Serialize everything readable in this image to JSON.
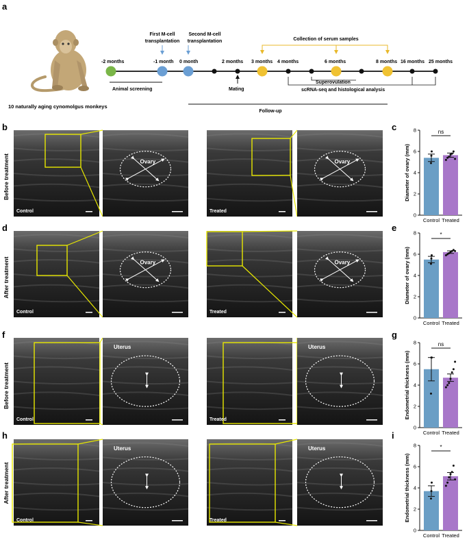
{
  "figure": {
    "panel_labels": [
      "a",
      "b",
      "c",
      "d",
      "e",
      "f",
      "g",
      "h",
      "i"
    ],
    "timeline": {
      "monkey_caption": "10 naturally aging cynomolgus monkeys",
      "points": [
        "-2 months",
        "-1 month",
        "0 month",
        "2 months",
        "3 months",
        "4 months",
        "6 months",
        "8 months",
        "16 months",
        "25 months"
      ],
      "first_transplant": [
        "First M-cell",
        "transplantation"
      ],
      "second_transplant": [
        "Second M-cell",
        "transplantation"
      ],
      "serum": "Collection of serum samples",
      "screening": "Animal screening",
      "mating": "Mating",
      "superovulation": "Superovulation",
      "scrna": "scRNA-seq and histological analysis",
      "followup": "Follow-up",
      "colors": {
        "screening": "#7ab648",
        "transplant": "#6b9fd4",
        "serum": "#f0c232",
        "arrow_serum": "#e8b82a",
        "arrow_transplant": "#6b9fd4",
        "event": "#111111"
      }
    },
    "rows": {
      "before": "Before treatment",
      "after": "After treatment"
    },
    "image_labels": {
      "control": "Control",
      "treated": "Treated",
      "ovary": "Ovary",
      "uterus": "Uterus"
    },
    "colors": {
      "control_bar": "#6a9ec5",
      "treated_bar": "#a877c9",
      "zoom_box": "#e8e800"
    }
  },
  "chart_data": [
    {
      "panel": "c",
      "type": "bar",
      "categories": [
        "Control",
        "Treated"
      ],
      "values": [
        5.4,
        5.65
      ],
      "errors": [
        0.35,
        0.2
      ],
      "points": [
        [
          4.9,
          5.6,
          6.0
        ],
        [
          5.2,
          5.4,
          5.5,
          5.7,
          5.8,
          6.0,
          5.3
        ]
      ],
      "ylabel": "Diameter of ovary (mm)",
      "ylim": [
        0,
        8
      ],
      "yticks": [
        0,
        2,
        4,
        6,
        8
      ],
      "significance": "ns"
    },
    {
      "panel": "e",
      "type": "bar",
      "categories": [
        "Control",
        "Treated"
      ],
      "values": [
        5.5,
        6.2
      ],
      "errors": [
        0.3,
        0.12
      ],
      "points": [
        [
          5.1,
          5.6,
          5.9
        ],
        [
          5.9,
          6.0,
          6.1,
          6.2,
          6.3,
          6.4,
          6.3
        ]
      ],
      "ylabel": "Diameter of ovary (mm)",
      "ylim": [
        0,
        8
      ],
      "yticks": [
        0,
        2,
        4,
        6,
        8
      ],
      "significance": "*"
    },
    {
      "panel": "g",
      "type": "bar",
      "categories": [
        "Control",
        "Treated"
      ],
      "values": [
        5.5,
        4.7
      ],
      "errors": [
        1.1,
        0.35
      ],
      "points": [
        [
          3.2,
          6.6,
          6.6
        ],
        [
          3.8,
          4.0,
          4.2,
          4.6,
          5.2,
          5.5,
          6.2
        ]
      ],
      "ylabel": "Endometrial thickness (mm)",
      "ylim": [
        0,
        8
      ],
      "yticks": [
        0,
        2,
        4,
        6,
        8
      ],
      "significance": "ns"
    },
    {
      "panel": "i",
      "type": "bar",
      "categories": [
        "Control",
        "Treated"
      ],
      "values": [
        3.7,
        5.1
      ],
      "errors": [
        0.5,
        0.35
      ],
      "points": [
        [
          3.0,
          3.7,
          4.5
        ],
        [
          4.2,
          4.5,
          5.0,
          5.3,
          5.5,
          6.1,
          4.8
        ]
      ],
      "ylabel": "Endometrial thickness (mm)",
      "ylim": [
        0,
        8
      ],
      "yticks": [
        0,
        2,
        4,
        6,
        8
      ],
      "significance": "*"
    }
  ]
}
